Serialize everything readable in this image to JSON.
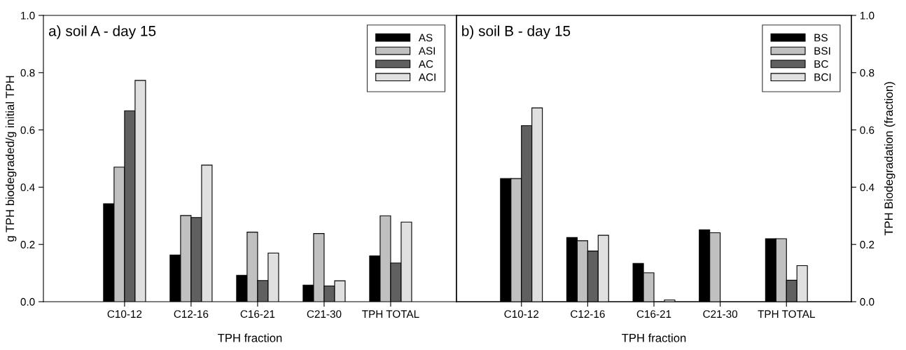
{
  "chart_data": [
    {
      "type": "bar",
      "title": "a) soil A - day 15",
      "xlabel": "TPH fraction",
      "ylabel": "g TPH biodegraded/g initial TPH",
      "categories": [
        "C10-12",
        "C12-16",
        "C16-21",
        "C21-30",
        "TPH TOTAL"
      ],
      "ylim": [
        0,
        1.0
      ],
      "yticks": [
        {
          "value": 0,
          "label": "0.0"
        },
        0.2,
        0.4,
        0.6,
        0.8,
        {
          "value": 1,
          "label": "1.0"
        }
      ],
      "legend": "top right",
      "grid": false,
      "series": [
        {
          "name": "AS",
          "color": "#000000",
          "values": [
            0.342,
            0.163,
            0.092,
            0.058,
            0.16
          ]
        },
        {
          "name": "ASI",
          "color": "#c0c0c0",
          "values": [
            0.47,
            0.301,
            0.243,
            0.238,
            0.3
          ]
        },
        {
          "name": "AC",
          "color": "#606060",
          "values": [
            0.667,
            0.294,
            0.074,
            0.055,
            0.135
          ]
        },
        {
          "name": "ACI",
          "color": "#e0e0e0",
          "values": [
            0.773,
            0.477,
            0.17,
            0.073,
            0.278
          ]
        }
      ]
    },
    {
      "type": "bar",
      "title": "b) soil B - day 15",
      "xlabel": "TPH fraction",
      "y2label": "TPH Biodegradation (fraction)",
      "categories": [
        "C10-12",
        "C12-16",
        "C16-21",
        "C21-30",
        "TPH TOTAL"
      ],
      "y2lim": [
        0,
        1.0
      ],
      "y2ticks": [
        {
          "value": 0,
          "label": "0.0"
        },
        0.2,
        0.4,
        0.6,
        0.8,
        {
          "value": 1,
          "label": "1.0"
        }
      ],
      "legend": "top right",
      "grid": false,
      "series": [
        {
          "name": "BS",
          "color": "#000000",
          "axis": "y2",
          "values": [
            0.43,
            0.224,
            0.134,
            0.251,
            0.22
          ]
        },
        {
          "name": "BSI",
          "color": "#c0c0c0",
          "axis": "y2",
          "values": [
            0.43,
            0.213,
            0.101,
            0.241,
            0.22
          ]
        },
        {
          "name": "BC",
          "color": "#606060",
          "axis": "y2",
          "values": [
            0.615,
            0.177,
            null,
            null,
            0.075
          ]
        },
        {
          "name": "BCI",
          "color": "#e0e0e0",
          "axis": "y2",
          "values": [
            0.677,
            0.232,
            0.006,
            null,
            0.126
          ]
        }
      ]
    }
  ]
}
